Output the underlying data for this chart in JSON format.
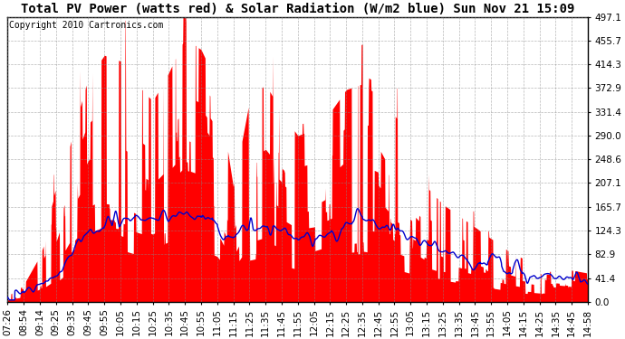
{
  "title": "Total PV Power (watts red) & Solar Radiation (W/m2 blue) Sun Nov 21 15:09",
  "copyright_text": "Copyright 2010 Cartronics.com",
  "yticks": [
    0.0,
    41.4,
    82.9,
    124.3,
    165.7,
    207.1,
    248.6,
    290.0,
    331.4,
    372.9,
    414.3,
    455.7,
    497.1
  ],
  "ymax": 497.1,
  "ymin": 0.0,
  "xtick_labels": [
    "07:26",
    "08:54",
    "09:14",
    "09:25",
    "09:35",
    "09:45",
    "09:55",
    "10:05",
    "10:15",
    "10:25",
    "10:35",
    "10:45",
    "10:55",
    "11:05",
    "11:15",
    "11:25",
    "11:35",
    "11:45",
    "11:55",
    "12:05",
    "12:15",
    "12:25",
    "12:35",
    "12:45",
    "12:55",
    "13:05",
    "13:15",
    "13:25",
    "13:35",
    "13:45",
    "13:55",
    "14:05",
    "14:15",
    "14:25",
    "14:35",
    "14:45",
    "14:58"
  ],
  "red_color": "#FF0000",
  "blue_color": "#0000CC",
  "bg_color": "#FFFFFF",
  "grid_color": "#888888",
  "title_fontsize": 10,
  "copyright_fontsize": 7,
  "tick_fontsize": 7.5,
  "red_envelope": [
    10,
    30,
    80,
    160,
    290,
    390,
    430,
    420,
    380,
    350,
    400,
    460,
    440,
    380,
    200,
    350,
    380,
    330,
    290,
    300,
    330,
    370,
    380,
    360,
    290,
    250,
    200,
    170,
    150,
    130,
    110,
    90,
    75,
    65,
    60,
    55,
    50
  ],
  "blue_smooth": [
    10,
    15,
    30,
    45,
    80,
    120,
    130,
    140,
    145,
    145,
    148,
    150,
    145,
    135,
    110,
    125,
    130,
    125,
    110,
    115,
    120,
    135,
    145,
    138,
    125,
    115,
    100,
    90,
    80,
    70,
    65,
    55,
    50,
    45,
    42,
    40,
    38
  ]
}
